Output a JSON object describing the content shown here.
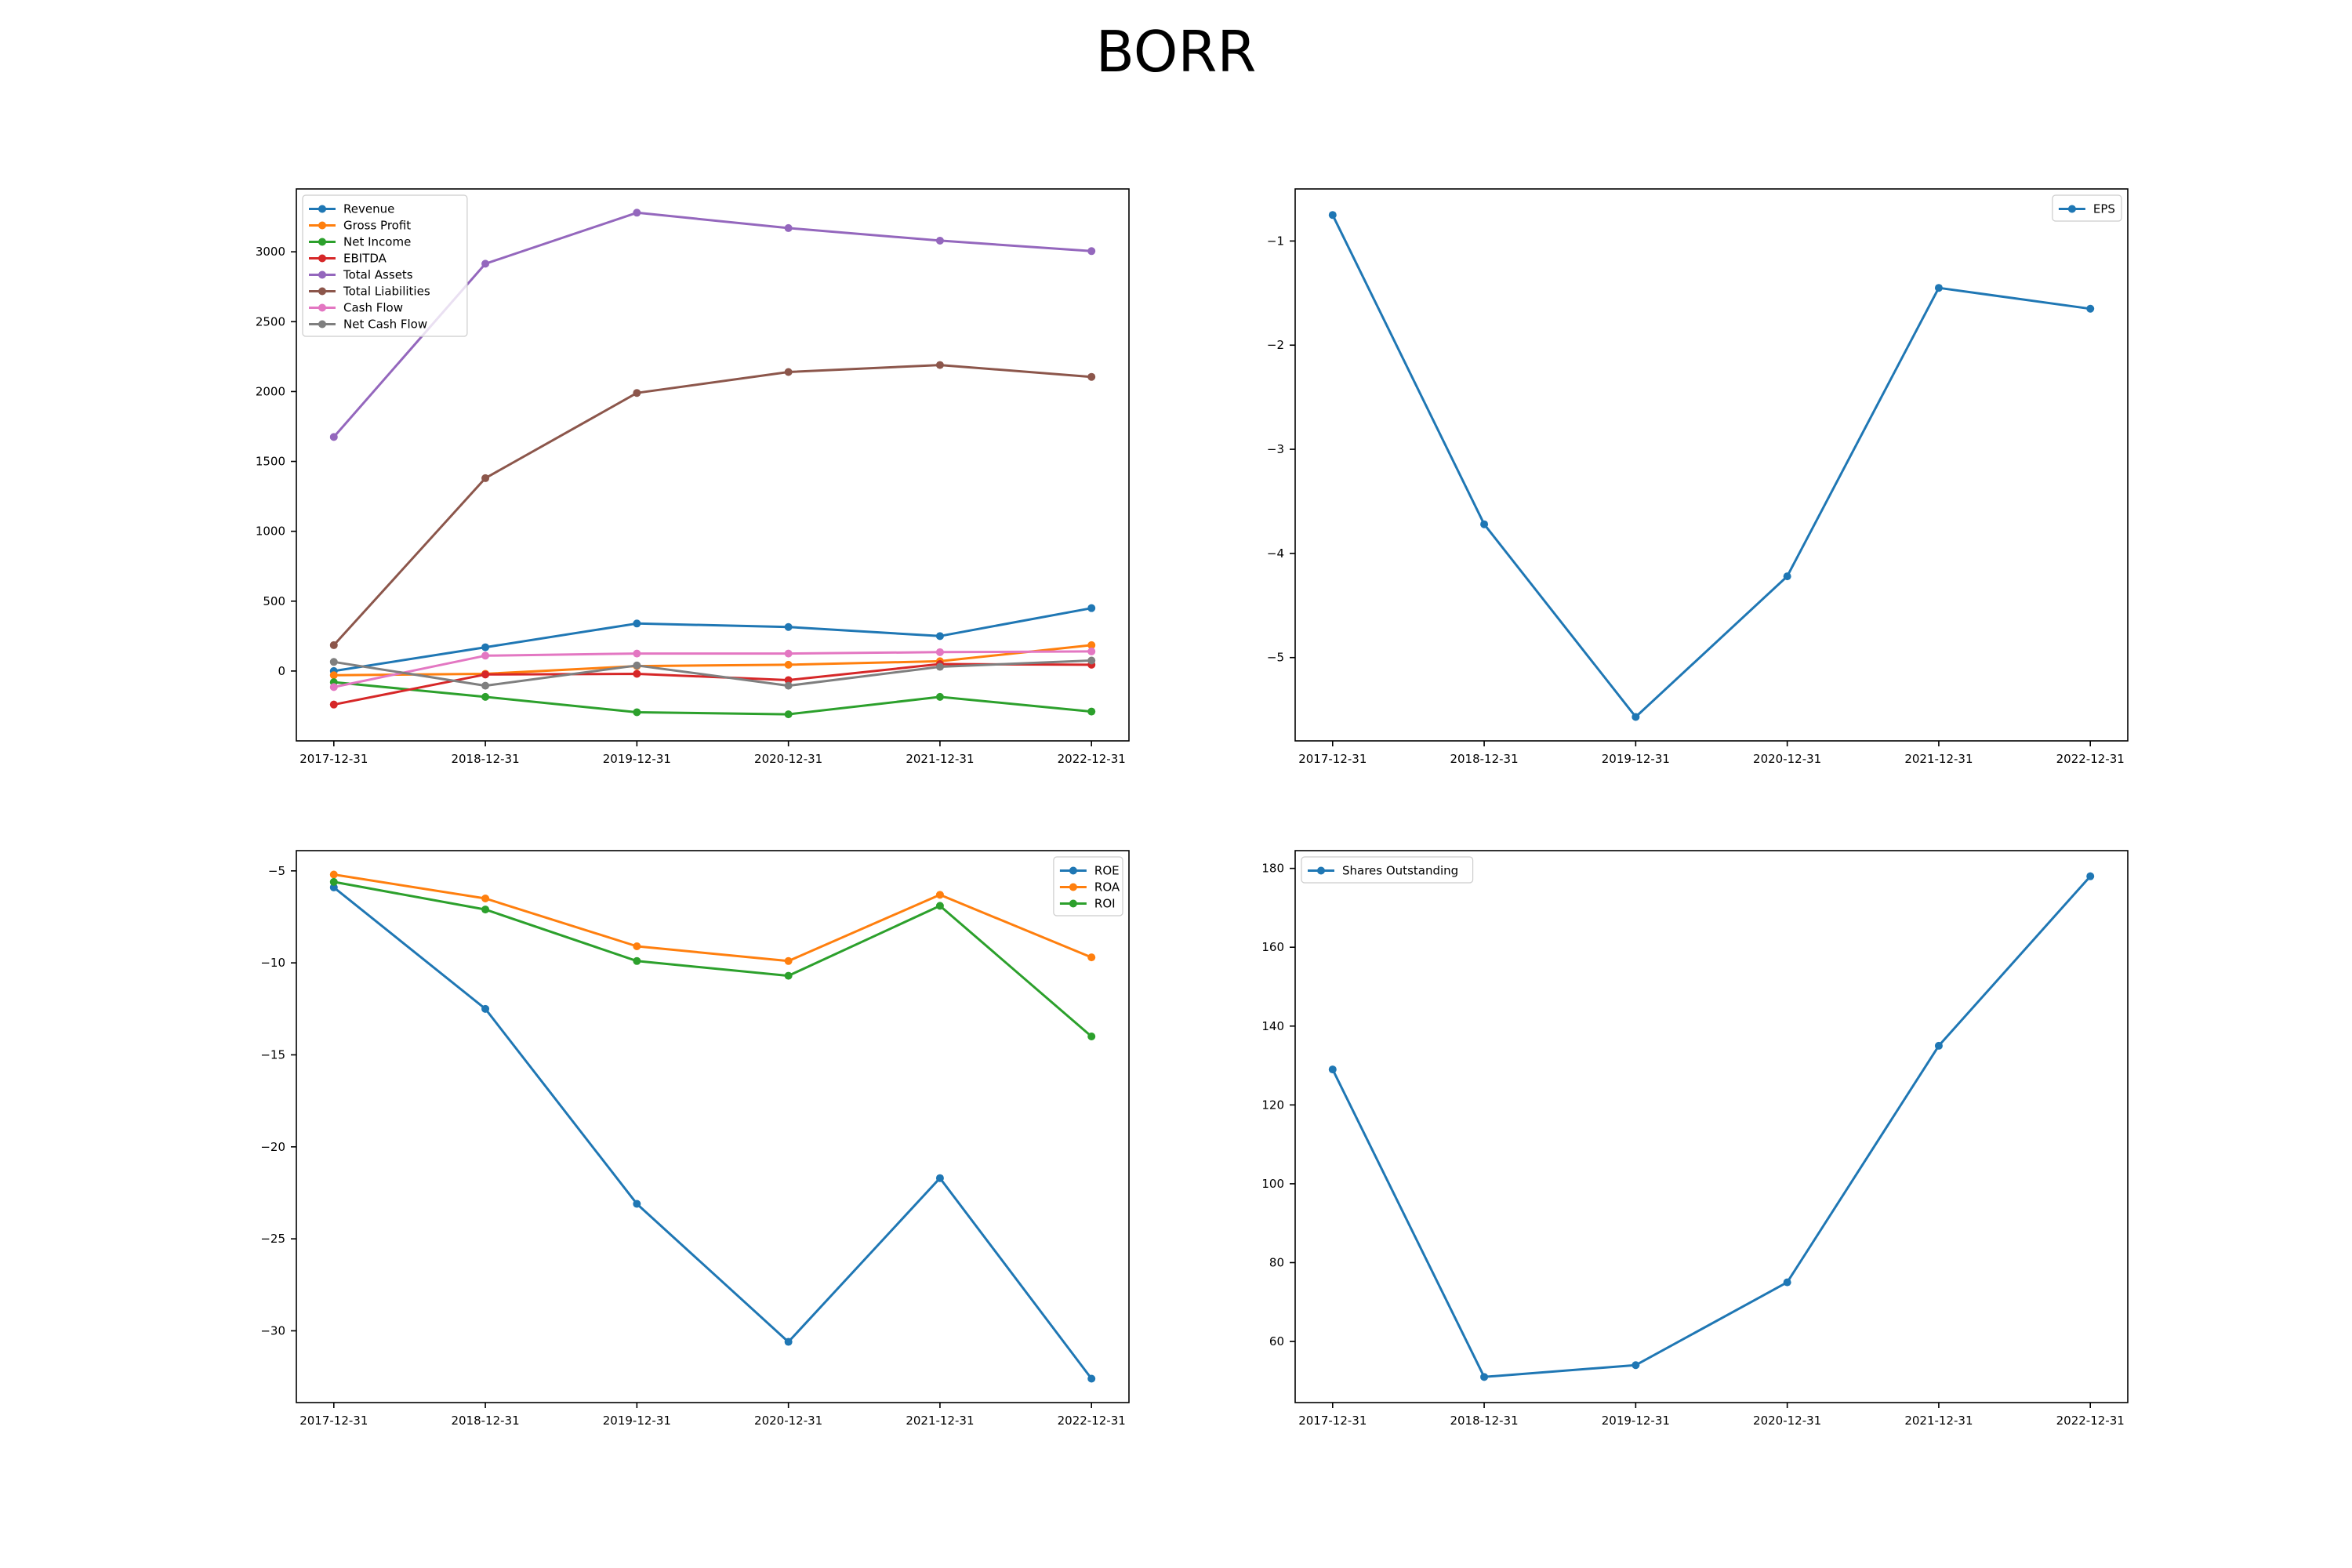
{
  "title": "BORR",
  "chart_data": [
    {
      "type": "line",
      "title": "",
      "xlabel": "",
      "ylabel": "",
      "categories": [
        "2017-12-31",
        "2018-12-31",
        "2019-12-31",
        "2020-12-31",
        "2021-12-31",
        "2022-12-31"
      ],
      "ylim": [
        -500,
        3450
      ],
      "yticks": [
        0,
        500,
        1000,
        1500,
        2000,
        2500,
        3000
      ],
      "legend": "top-left",
      "grid": false,
      "series": [
        {
          "name": "Revenue",
          "color": "#1f77b4",
          "values": [
            0,
            170,
            340,
            315,
            250,
            450
          ]
        },
        {
          "name": "Gross Profit",
          "color": "#ff7f0e",
          "values": [
            -30,
            -20,
            35,
            45,
            70,
            185
          ]
        },
        {
          "name": "Net Income",
          "color": "#2ca02c",
          "values": [
            -80,
            -185,
            -295,
            -310,
            -185,
            -290
          ]
        },
        {
          "name": "EBITDA",
          "color": "#d62728",
          "values": [
            -240,
            -25,
            -20,
            -65,
            50,
            45
          ]
        },
        {
          "name": "Total Assets",
          "color": "#9467bd",
          "values": [
            1675,
            2915,
            3280,
            3170,
            3080,
            3005
          ]
        },
        {
          "name": "Total Liabilities",
          "color": "#8c564b",
          "values": [
            185,
            1380,
            1990,
            2140,
            2190,
            2105
          ]
        },
        {
          "name": "Cash Flow",
          "color": "#e377c2",
          "values": [
            -115,
            110,
            125,
            125,
            135,
            140
          ]
        },
        {
          "name": "Net Cash Flow",
          "color": "#7f7f7f",
          "values": [
            65,
            -105,
            40,
            -105,
            30,
            75
          ]
        }
      ]
    },
    {
      "type": "line",
      "title": "",
      "xlabel": "",
      "ylabel": "",
      "categories": [
        "2017-12-31",
        "2018-12-31",
        "2019-12-31",
        "2020-12-31",
        "2021-12-31",
        "2022-12-31"
      ],
      "ylim": [
        -5.8,
        -0.5
      ],
      "yticks": [
        -5,
        -4,
        -3,
        -2,
        -1
      ],
      "legend": "top-right",
      "grid": false,
      "series": [
        {
          "name": "EPS",
          "color": "#1f77b4",
          "values": [
            -0.75,
            -3.72,
            -5.57,
            -4.22,
            -1.45,
            -1.65
          ]
        }
      ]
    },
    {
      "type": "line",
      "title": "",
      "xlabel": "",
      "ylabel": "",
      "categories": [
        "2017-12-31",
        "2018-12-31",
        "2019-12-31",
        "2020-12-31",
        "2021-12-31",
        "2022-12-31"
      ],
      "ylim": [
        -33.9,
        -3.9
      ],
      "yticks": [
        -30,
        -25,
        -20,
        -15,
        -10,
        -5
      ],
      "legend": "top-right",
      "grid": false,
      "series": [
        {
          "name": "ROE",
          "color": "#1f77b4",
          "values": [
            -5.9,
            -12.5,
            -23.1,
            -30.6,
            -21.7,
            -32.6
          ]
        },
        {
          "name": "ROA",
          "color": "#ff7f0e",
          "values": [
            -5.2,
            -6.5,
            -9.1,
            -9.9,
            -6.3,
            -9.7
          ]
        },
        {
          "name": "ROI",
          "color": "#2ca02c",
          "values": [
            -5.6,
            -7.1,
            -9.9,
            -10.7,
            -6.9,
            -14.0
          ]
        }
      ]
    },
    {
      "type": "line",
      "title": "",
      "xlabel": "",
      "ylabel": "",
      "categories": [
        "2017-12-31",
        "2018-12-31",
        "2019-12-31",
        "2020-12-31",
        "2021-12-31",
        "2022-12-31"
      ],
      "ylim": [
        44.5,
        184.5
      ],
      "yticks": [
        60,
        80,
        100,
        120,
        140,
        160,
        180
      ],
      "legend": "top-left",
      "grid": false,
      "series": [
        {
          "name": "Shares Outstanding",
          "color": "#1f77b4",
          "values": [
            129,
            51,
            54,
            75,
            135,
            178
          ]
        }
      ]
    }
  ]
}
